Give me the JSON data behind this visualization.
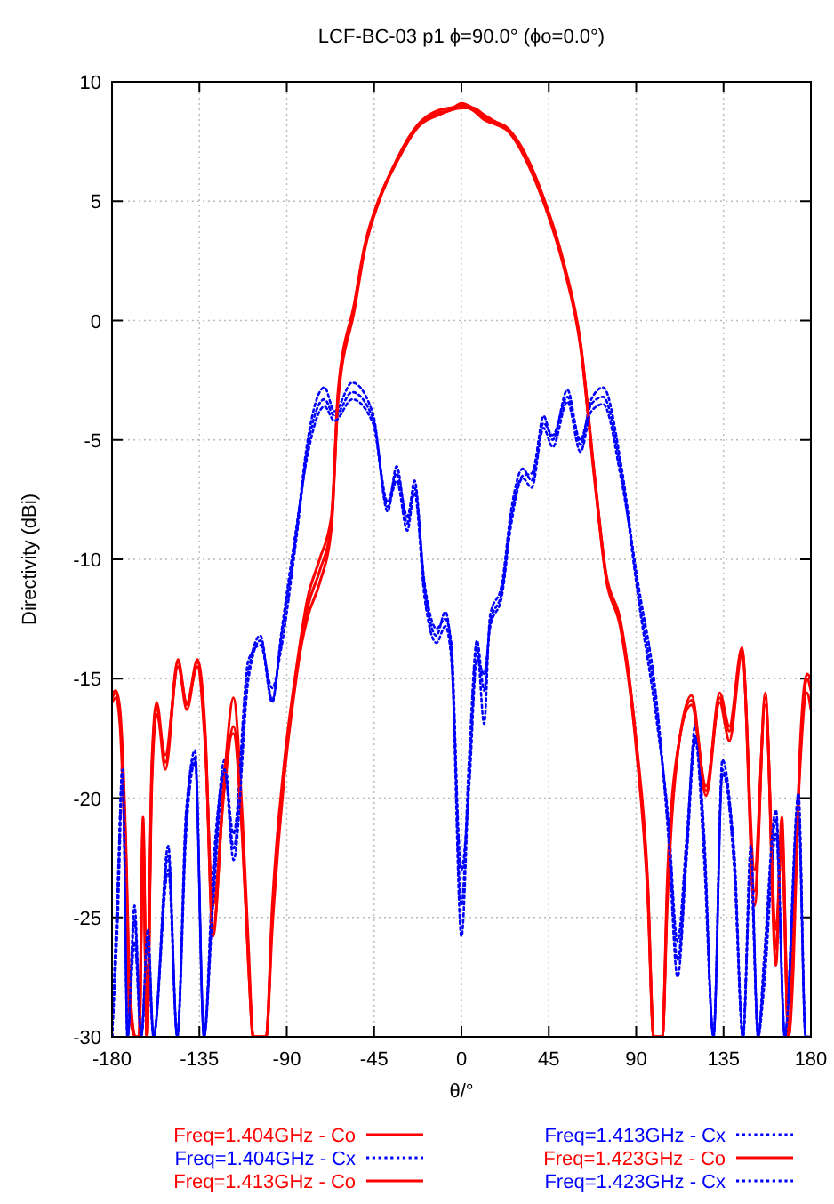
{
  "chart_data": {
    "type": "line",
    "title": "LCF-BC-03 p1 ϕ=90.0° (ϕo=0.0°)",
    "xlabel": "θ/°",
    "ylabel": "Directivity (dBi)",
    "xlim": [
      -180,
      180
    ],
    "ylim": [
      -30,
      10
    ],
    "xticks": [
      -180,
      -135,
      -90,
      -45,
      0,
      45,
      90,
      135,
      180
    ],
    "yticks": [
      -30,
      -25,
      -20,
      -15,
      -10,
      -5,
      0,
      5,
      10
    ],
    "grid": true,
    "legend": "bottom",
    "marker": "none",
    "series": [
      {
        "name": "Freq=1.404GHz - Co",
        "color": "#ff0000",
        "line_style": "solid",
        "x": [
          -180,
          -178,
          -176,
          -173,
          -171,
          -168,
          -166,
          -164,
          -162,
          -159.5,
          -157,
          -152.5,
          -146,
          -141.5,
          -136,
          -132,
          -128,
          -122,
          -117.5,
          -112.8,
          -109.7,
          -107.3,
          -100.6,
          -97.5,
          -91.4,
          -85.3,
          -79.2,
          -73.1,
          -67,
          -63.5,
          -55,
          -50,
          -42.5,
          -33,
          -22.5,
          -12,
          -6,
          0,
          6,
          12,
          18,
          23,
          34,
          43,
          52.5,
          61.5,
          68.5,
          74.5,
          82,
          90,
          96,
          99,
          103.5,
          106,
          110,
          118.5,
          126,
          133,
          138,
          144.5,
          151,
          156.5,
          162,
          165,
          168.5,
          171,
          174,
          178,
          180
        ],
        "values": [
          -15.8,
          -15.6,
          -16.5,
          -22,
          -28,
          -30,
          -30,
          -20.8,
          -30,
          -19,
          -16.2,
          -18.8,
          -14.3,
          -16.3,
          -14.3,
          -17.5,
          -25.5,
          -19,
          -15.8,
          -20.9,
          -26.3,
          -30,
          -30,
          -25,
          -18.9,
          -14.9,
          -12.4,
          -11,
          -8.7,
          -3.1,
          0.7,
          3,
          5,
          6.7,
          8.1,
          8.7,
          8.8,
          9.1,
          8.9,
          8.5,
          8.3,
          8.1,
          6.7,
          4.9,
          2.4,
          -1.1,
          -6.5,
          -10.7,
          -12.7,
          -17.7,
          -23.9,
          -30,
          -30,
          -24,
          -19,
          -15.9,
          -19.9,
          -15.8,
          -17.2,
          -13.8,
          -23.9,
          -15.8,
          -26.3,
          -21.3,
          -30,
          -26,
          -19,
          -15,
          -15.5
        ]
      },
      {
        "name": "Freq=1.404GHz - Cx",
        "color": "#0000ff",
        "line_style": "dotted",
        "x": [
          -180,
          -177,
          -174.5,
          -172,
          -168.4,
          -165,
          -161.5,
          -158.6,
          -151,
          -146.4,
          -141.8,
          -137.2,
          -132.6,
          -128,
          -122,
          -117.4,
          -109.7,
          -103.6,
          -97.5,
          -93,
          -85.3,
          -79.2,
          -70.6,
          -65.4,
          -56.3,
          -45.6,
          -38,
          -33.4,
          -27.9,
          -24.2,
          -19,
          -12.9,
          -8.3,
          -5.2,
          0,
          4,
          8,
          11.7,
          14.7,
          20.9,
          25.5,
          31.6,
          36.2,
          42.3,
          47,
          54.6,
          61.3,
          66.9,
          73,
          82.2,
          91.4,
          100.6,
          106.7,
          111.3,
          116,
          120.5,
          125,
          129.8,
          134.4,
          140.5,
          145,
          149,
          152.8,
          155.8,
          162,
          166.6,
          173.6,
          177.3,
          180
        ],
        "values": [
          -30,
          -24,
          -18.4,
          -30,
          -25.1,
          -30,
          -26,
          -30,
          -22.4,
          -30,
          -20.9,
          -18,
          -30,
          -23.9,
          -18.4,
          -22.1,
          -14.7,
          -13.2,
          -15.9,
          -13.4,
          -9,
          -5,
          -2.8,
          -3.8,
          -2.6,
          -3.9,
          -8,
          -6.1,
          -8.5,
          -6.7,
          -11.2,
          -13.2,
          -12.2,
          -13.9,
          -25.8,
          -18.9,
          -13.7,
          -16.9,
          -12.4,
          -11,
          -8,
          -6.2,
          -6.7,
          -4,
          -5,
          -2.9,
          -5.2,
          -3.3,
          -2.8,
          -6,
          -11.5,
          -16.4,
          -21.4,
          -26.8,
          -22.1,
          -16.9,
          -22.1,
          -30,
          -18.4,
          -22.6,
          -30,
          -22.6,
          -30,
          -27.4,
          -20.9,
          -30,
          -20.2,
          -30,
          -30
        ]
      },
      {
        "name": "Freq=1.413GHz - Co",
        "color": "#ff0000",
        "line_style": "solid",
        "x": [
          -180,
          -178,
          -176,
          -173,
          -171,
          -168,
          -166,
          -164,
          -162,
          -159.5,
          -157,
          -152.5,
          -146,
          -141.5,
          -136,
          -132,
          -128,
          -122,
          -117.5,
          -112.8,
          -109.7,
          -107.3,
          -100.6,
          -97.5,
          -91.4,
          -85.3,
          -79.2,
          -73.1,
          -67,
          -63.5,
          -55,
          -50,
          -42.5,
          -33,
          -22.5,
          -12,
          -6,
          0,
          6,
          12,
          18,
          23,
          34,
          43,
          52.5,
          61.5,
          68.5,
          74.5,
          82,
          90,
          96,
          99,
          103.5,
          106,
          110,
          118.5,
          126,
          133,
          138,
          144.5,
          151,
          156.5,
          162,
          165,
          168.5,
          171,
          174,
          178,
          180
        ],
        "values": [
          -16,
          -15.8,
          -16.8,
          -23,
          -29,
          -30,
          -30,
          -22,
          -30,
          -19.5,
          -16.5,
          -18.2,
          -14.5,
          -16,
          -14.5,
          -17.8,
          -24.5,
          -19.5,
          -17,
          -21.5,
          -27,
          -30,
          -30,
          -25.5,
          -19.2,
          -15.1,
          -12,
          -10.5,
          -8.5,
          -3.3,
          0.5,
          2.9,
          5,
          6.8,
          8.2,
          8.8,
          8.9,
          9.0,
          8.8,
          8.4,
          8.2,
          8,
          6.6,
          4.8,
          2.3,
          -1.2,
          -6.6,
          -10.8,
          -12.9,
          -17.9,
          -24.2,
          -30,
          -30,
          -23.5,
          -18.8,
          -16.1,
          -19.5,
          -16,
          -17.6,
          -14,
          -23,
          -16.1,
          -25.5,
          -21.8,
          -30,
          -25,
          -19.3,
          -15.6,
          -16.3
        ]
      },
      {
        "name": "Freq=1.413GHz - Cx",
        "color": "#0000ff",
        "line_style": "dotted",
        "x": [
          -180,
          -177,
          -174.5,
          -172,
          -168.4,
          -165,
          -161.5,
          -158.6,
          -151,
          -146.4,
          -141.8,
          -137.2,
          -132.6,
          -128,
          -122,
          -117.4,
          -109.7,
          -103.6,
          -97.5,
          -93,
          -85.3,
          -79.2,
          -70.6,
          -65.4,
          -56.3,
          -45.6,
          -38,
          -33.4,
          -27.9,
          -24.2,
          -19,
          -12.9,
          -8.3,
          -5.2,
          0,
          4,
          8,
          11.7,
          14.7,
          20.9,
          25.5,
          31.6,
          36.2,
          42.3,
          47,
          54.6,
          61.3,
          66.9,
          73,
          82.2,
          91.4,
          100.6,
          106.7,
          111.3,
          116,
          120.5,
          125,
          129.8,
          134.4,
          140.5,
          145,
          149,
          152.8,
          155.8,
          162,
          166.6,
          173.6,
          177.3,
          180
        ],
        "values": [
          -30,
          -25,
          -19,
          -30,
          -26,
          -30,
          -27,
          -30,
          -23,
          -30,
          -21.5,
          -18.5,
          -30,
          -23,
          -19,
          -21.5,
          -14.2,
          -13.6,
          -15.4,
          -13.8,
          -9.3,
          -5.3,
          -3.3,
          -4,
          -3,
          -4.1,
          -7.6,
          -6.4,
          -8.2,
          -7,
          -11,
          -12.9,
          -12.5,
          -13.5,
          -24.5,
          -18.2,
          -13.4,
          -15.5,
          -12.7,
          -11.3,
          -8.3,
          -6.5,
          -6.4,
          -4.3,
          -4.8,
          -3.2,
          -5,
          -3.5,
          -3.2,
          -6.3,
          -11.8,
          -16.8,
          -21,
          -26,
          -21.6,
          -17.4,
          -21.5,
          -30,
          -19,
          -22.2,
          -30,
          -23.2,
          -30,
          -28,
          -21.5,
          -30,
          -20.8,
          -30,
          -30
        ]
      },
      {
        "name": "Freq=1.423GHz - Co",
        "color": "#ff0000",
        "line_style": "solid",
        "x": [
          -180,
          -178,
          -176,
          -173,
          -171,
          -168,
          -166,
          -164,
          -162,
          -159.5,
          -157,
          -152.5,
          -146,
          -141.5,
          -136,
          -132,
          -128,
          -122,
          -117.5,
          -112.8,
          -109.7,
          -107.3,
          -100.6,
          -97.5,
          -91.4,
          -85.3,
          -79.2,
          -73.1,
          -67,
          -63.5,
          -55,
          -50,
          -42.5,
          -33,
          -22.5,
          -12,
          -6,
          0,
          6,
          12,
          18,
          23,
          34,
          43,
          52.5,
          61.5,
          68.5,
          74.5,
          82,
          90,
          96,
          99,
          103.5,
          106,
          110,
          118.5,
          126,
          133,
          138,
          144.5,
          151,
          156.5,
          162,
          165,
          168.5,
          171,
          174,
          178,
          180
        ],
        "values": [
          -15.6,
          -15.5,
          -16.2,
          -21.5,
          -27.5,
          -30,
          -30,
          -21.2,
          -30,
          -18.6,
          -16,
          -18.5,
          -14.2,
          -16.1,
          -14.2,
          -17.2,
          -25.8,
          -18.8,
          -17.3,
          -21.8,
          -27,
          -30,
          -30,
          -24.6,
          -18.6,
          -14.7,
          -11.6,
          -10,
          -8.2,
          -2.9,
          0.8,
          3.1,
          5.1,
          6.7,
          8.1,
          8.6,
          8.8,
          8.9,
          8.9,
          8.6,
          8.3,
          8.1,
          6.8,
          5,
          2.5,
          -1,
          -6.4,
          -10.6,
          -12.6,
          -17.6,
          -23.6,
          -30,
          -30,
          -24.5,
          -19.2,
          -15.7,
          -19.7,
          -15.6,
          -17,
          -13.7,
          -24.5,
          -15.6,
          -27,
          -20.8,
          -30,
          -27,
          -18.7,
          -14.8,
          -15
        ]
      },
      {
        "name": "Freq=1.423GHz - Cx",
        "color": "#0000ff",
        "line_style": "dotted",
        "x": [
          -180,
          -177,
          -174.5,
          -172,
          -168.4,
          -165,
          -161.5,
          -158.6,
          -151,
          -146.4,
          -141.8,
          -137.2,
          -132.6,
          -128,
          -122,
          -117.4,
          -109.7,
          -103.6,
          -97.5,
          -93,
          -85.3,
          -79.2,
          -70.6,
          -65.4,
          -56.3,
          -45.6,
          -38,
          -33.4,
          -27.9,
          -24.2,
          -19,
          -12.9,
          -8.3,
          -5.2,
          0,
          4,
          8,
          11.7,
          14.7,
          20.9,
          25.5,
          31.6,
          36.2,
          42.3,
          47,
          54.6,
          61.3,
          66.9,
          73,
          82.2,
          91.4,
          100.6,
          106.7,
          111.3,
          116,
          120.5,
          125,
          129.8,
          134.4,
          140.5,
          145,
          149,
          152.8,
          155.8,
          162,
          166.6,
          173.6,
          177.3,
          180
        ],
        "values": [
          -30,
          -23.5,
          -18.8,
          -30,
          -24.5,
          -30,
          -25.5,
          -30,
          -22,
          -30,
          -20.5,
          -18.3,
          -30,
          -24.5,
          -18.8,
          -22.6,
          -15,
          -13.4,
          -16,
          -13.2,
          -8.8,
          -5.6,
          -3.6,
          -4.2,
          -3.3,
          -4.3,
          -7.8,
          -6.7,
          -8.8,
          -7.2,
          -11.6,
          -13.5,
          -12.8,
          -14.2,
          -23,
          -19.5,
          -14.2,
          -14.8,
          -12.9,
          -11.5,
          -8.6,
          -6.6,
          -7,
          -4.5,
          -5.3,
          -3.4,
          -5.5,
          -3.8,
          -3.5,
          -6.6,
          -11.2,
          -16,
          -21.8,
          -27.5,
          -22.5,
          -17.6,
          -22.6,
          -30,
          -18.8,
          -23,
          -30,
          -22,
          -30,
          -26.8,
          -20.5,
          -30,
          -19.8,
          -30,
          -30
        ]
      }
    ]
  }
}
